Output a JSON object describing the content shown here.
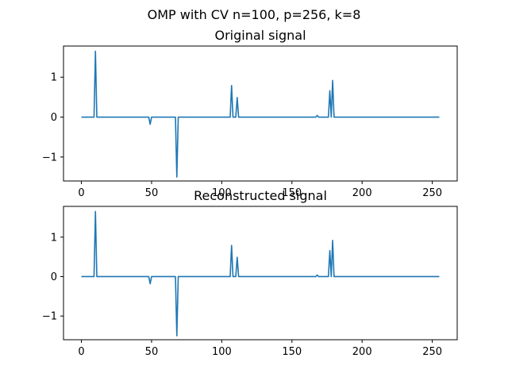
{
  "figure": {
    "suptitle": "OMP with CV n=100, p=256, k=8"
  },
  "chart_data": [
    {
      "type": "line",
      "title": "Original signal",
      "xlabel": "",
      "ylabel": "",
      "xlim": [
        -12.75,
        267.75
      ],
      "ylim": [
        -1.6,
        1.78
      ],
      "xticks": [
        0,
        50,
        100,
        150,
        200,
        250
      ],
      "xtick_labels": [
        "0",
        "50",
        "100",
        "150",
        "200",
        "250"
      ],
      "yticks": [
        -1,
        0,
        1
      ],
      "ytick_labels": [
        "−1",
        "0",
        "1"
      ],
      "grid": false,
      "color": "#1f77b4",
      "series": [
        {
          "name": "Original signal",
          "x": [
            0,
            9,
            10,
            11,
            48,
            49,
            50,
            67,
            68,
            69,
            106,
            107,
            108,
            110,
            111,
            112,
            167,
            168,
            169,
            176,
            177,
            178,
            179,
            180,
            255
          ],
          "y": [
            0,
            0,
            1.65,
            0,
            0,
            -0.18,
            0,
            0,
            -1.5,
            0,
            0,
            0.79,
            0,
            0,
            0.49,
            0,
            0,
            0.04,
            0,
            0,
            0.66,
            0,
            0.92,
            0,
            0
          ]
        }
      ]
    },
    {
      "type": "line",
      "title": "Reconstructed signal",
      "xlabel": "",
      "ylabel": "",
      "xlim": [
        -12.75,
        267.75
      ],
      "ylim": [
        -1.6,
        1.78
      ],
      "xticks": [
        0,
        50,
        100,
        150,
        200,
        250
      ],
      "xtick_labels": [
        "0",
        "50",
        "100",
        "150",
        "200",
        "250"
      ],
      "yticks": [
        -1,
        0,
        1
      ],
      "ytick_labels": [
        "−1",
        "0",
        "1"
      ],
      "grid": false,
      "color": "#1f77b4",
      "series": [
        {
          "name": "Reconstructed signal",
          "x": [
            0,
            9,
            10,
            11,
            48,
            49,
            50,
            67,
            68,
            69,
            106,
            107,
            108,
            110,
            111,
            112,
            167,
            168,
            169,
            176,
            177,
            178,
            179,
            180,
            255
          ],
          "y": [
            0,
            0,
            1.65,
            0,
            0,
            -0.18,
            0,
            0,
            -1.5,
            0,
            0,
            0.79,
            0,
            0,
            0.49,
            0,
            0,
            0.04,
            0,
            0,
            0.66,
            0,
            0.92,
            0,
            0
          ]
        }
      ]
    }
  ]
}
